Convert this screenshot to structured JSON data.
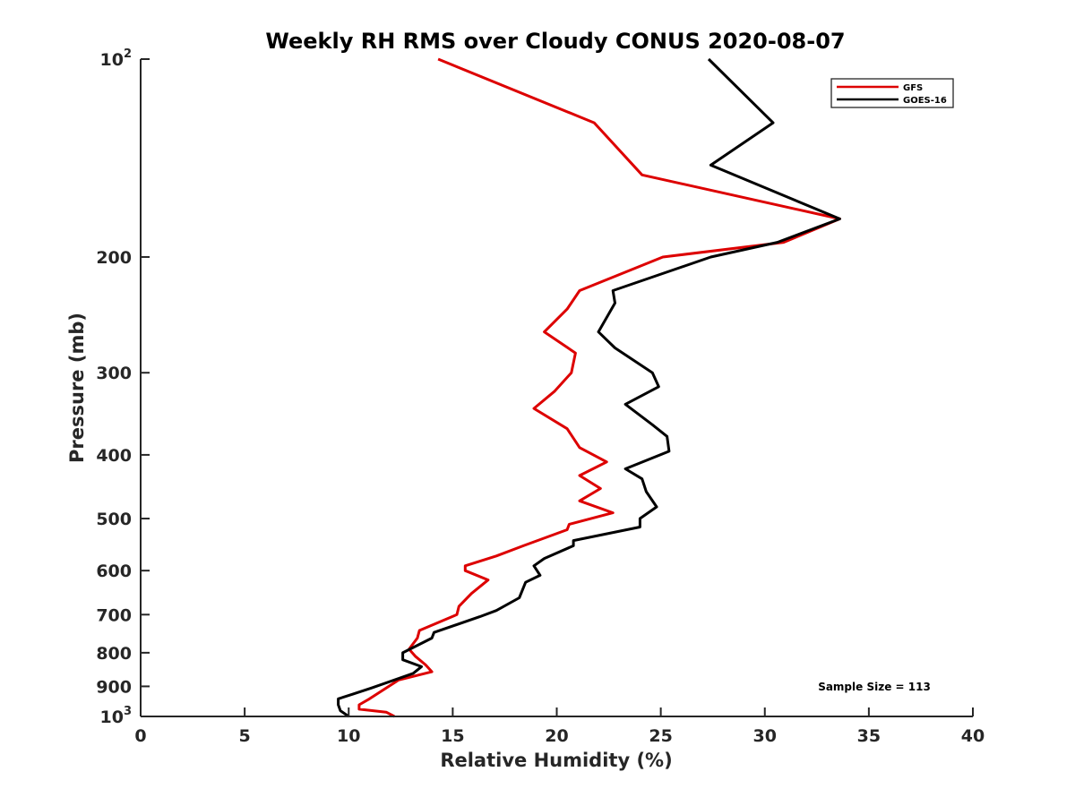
{
  "chart_data": {
    "type": "line",
    "title": "Weekly RH RMS over Cloudy CONUS 2020-08-07",
    "xlabel": "Relative Humidity (%)",
    "ylabel": "Pressure (mb)",
    "xlim": [
      0,
      40
    ],
    "ylim": [
      100,
      1000
    ],
    "yscale": "log",
    "y_reversed": true,
    "x_ticks": [
      0,
      5,
      10,
      15,
      20,
      25,
      30,
      35,
      40
    ],
    "x_tick_labels": [
      "0",
      "5",
      "10",
      "15",
      "20",
      "25",
      "30",
      "35",
      "40"
    ],
    "y_ticks": [
      {
        "value": 100,
        "base": "10",
        "exp": "2"
      },
      {
        "value": 200,
        "label": "200"
      },
      {
        "value": 300,
        "label": "300"
      },
      {
        "value": 400,
        "label": "400"
      },
      {
        "value": 500,
        "label": "500"
      },
      {
        "value": 600,
        "label": "600"
      },
      {
        "value": 700,
        "label": "700"
      },
      {
        "value": 800,
        "label": "800"
      },
      {
        "value": 900,
        "label": "900"
      },
      {
        "value": 1000,
        "base": "10",
        "exp": "3"
      }
    ],
    "legend_position": "top-right",
    "annotation": "Sample Size = 113",
    "colors": {
      "GFS": "#dd0000",
      "GOES-16": "#000000"
    },
    "series": [
      {
        "name": "GFS",
        "color": "#dd0000",
        "points": [
          [
            14.3,
            100
          ],
          [
            21.8,
            125
          ],
          [
            24.1,
            150
          ],
          [
            33.6,
            175
          ],
          [
            30.9,
            190
          ],
          [
            25.1,
            200
          ],
          [
            21.1,
            225
          ],
          [
            20.5,
            240
          ],
          [
            19.4,
            260
          ],
          [
            20.9,
            280
          ],
          [
            20.7,
            300
          ],
          [
            19.9,
            320
          ],
          [
            18.9,
            340
          ],
          [
            20.5,
            365
          ],
          [
            21.1,
            390
          ],
          [
            22.4,
            410
          ],
          [
            21.1,
            430
          ],
          [
            22.1,
            450
          ],
          [
            21.1,
            470
          ],
          [
            22.7,
            490
          ],
          [
            20.6,
            510
          ],
          [
            20.5,
            520
          ],
          [
            18.4,
            550
          ],
          [
            17.1,
            570
          ],
          [
            15.6,
            590
          ],
          [
            15.6,
            600
          ],
          [
            16.7,
            620
          ],
          [
            15.9,
            650
          ],
          [
            15.3,
            680
          ],
          [
            15.2,
            700
          ],
          [
            13.4,
            740
          ],
          [
            13.3,
            760
          ],
          [
            12.9,
            790
          ],
          [
            13.2,
            810
          ],
          [
            13.7,
            835
          ],
          [
            14.0,
            855
          ],
          [
            12.4,
            880
          ],
          [
            11.0,
            940
          ],
          [
            10.5,
            960
          ],
          [
            10.5,
            975
          ],
          [
            11.8,
            985
          ],
          [
            12.2,
            1000
          ]
        ]
      },
      {
        "name": "GOES-16",
        "color": "#000000",
        "points": [
          [
            27.3,
            100
          ],
          [
            30.4,
            125
          ],
          [
            27.4,
            145
          ],
          [
            33.6,
            175
          ],
          [
            30.6,
            190
          ],
          [
            27.4,
            200
          ],
          [
            22.7,
            225
          ],
          [
            22.8,
            235
          ],
          [
            22.0,
            260
          ],
          [
            22.8,
            275
          ],
          [
            24.6,
            300
          ],
          [
            24.9,
            315
          ],
          [
            23.3,
            335
          ],
          [
            24.6,
            360
          ],
          [
            25.3,
            375
          ],
          [
            25.4,
            395
          ],
          [
            23.3,
            420
          ],
          [
            24.1,
            435
          ],
          [
            24.3,
            455
          ],
          [
            24.8,
            480
          ],
          [
            24.0,
            500
          ],
          [
            24.0,
            515
          ],
          [
            20.8,
            540
          ],
          [
            20.8,
            550
          ],
          [
            19.4,
            575
          ],
          [
            18.9,
            590
          ],
          [
            19.2,
            610
          ],
          [
            18.5,
            625
          ],
          [
            18.2,
            660
          ],
          [
            17.1,
            690
          ],
          [
            16.3,
            705
          ],
          [
            14.1,
            745
          ],
          [
            14.0,
            760
          ],
          [
            12.6,
            800
          ],
          [
            12.6,
            820
          ],
          [
            13.5,
            840
          ],
          [
            13.1,
            860
          ],
          [
            11.1,
            905
          ],
          [
            10.2,
            925
          ],
          [
            9.5,
            940
          ],
          [
            9.5,
            960
          ],
          [
            9.6,
            980
          ],
          [
            10.0,
            1000
          ]
        ]
      }
    ]
  }
}
